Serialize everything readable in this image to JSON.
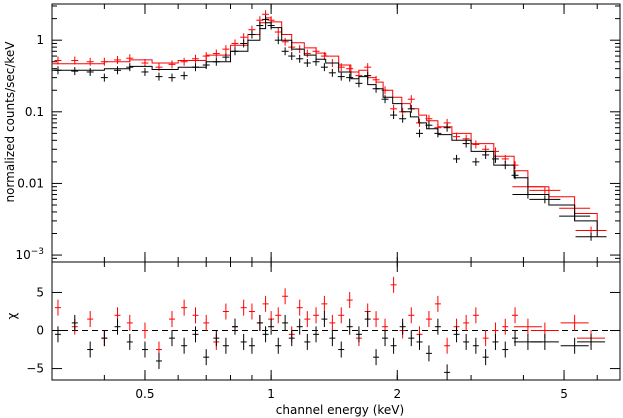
{
  "chart_data": [
    {
      "type": "line",
      "xscale": "log",
      "yscale": "log",
      "xlim": [
        0.3,
        6.8
      ],
      "ylim": [
        0.0008,
        3.2
      ],
      "ylabel": "normalized counts/sec/keV",
      "yticks": [
        {
          "value": 0.001,
          "base": "10",
          "exp": "−3"
        },
        {
          "value": 0.01,
          "label": "0.01"
        },
        {
          "value": 0.1,
          "label": "0.1"
        },
        {
          "value": 1,
          "label": "1"
        }
      ],
      "series": [
        {
          "color": "#ff0000",
          "style": "data",
          "x": [
            0.31,
            0.34,
            0.37,
            0.4,
            0.43,
            0.46,
            0.5,
            0.54,
            0.58,
            0.62,
            0.66,
            0.7,
            0.74,
            0.78,
            0.82,
            0.86,
            0.9,
            0.94,
            0.97,
            1.0,
            1.04,
            1.08,
            1.12,
            1.17,
            1.22,
            1.28,
            1.34,
            1.4,
            1.47,
            1.54,
            1.62,
            1.7,
            1.78,
            1.87,
            1.96,
            2.06,
            2.16,
            2.26,
            2.38,
            2.5,
            2.63,
            2.77,
            2.92,
            3.08,
            3.25,
            3.43,
            3.62,
            3.82,
            4.1,
            4.5,
            5.3,
            5.8
          ],
          "y": [
            0.52,
            0.52,
            0.5,
            0.5,
            0.53,
            0.56,
            0.48,
            0.42,
            0.46,
            0.5,
            0.55,
            0.6,
            0.65,
            0.75,
            0.9,
            1.1,
            1.4,
            1.9,
            2.3,
            1.9,
            1.3,
            0.95,
            0.8,
            0.75,
            0.65,
            0.7,
            0.6,
            0.48,
            0.42,
            0.4,
            0.32,
            0.42,
            0.28,
            0.2,
            0.11,
            0.1,
            0.15,
            0.07,
            0.08,
            0.06,
            0.07,
            0.045,
            0.042,
            0.035,
            0.03,
            0.028,
            0.022,
            0.018,
            0.009,
            0.008,
            0.0045,
            0.0022
          ]
        },
        {
          "color": "#ff0000",
          "style": "model",
          "x": [
            0.3,
            0.4,
            0.46,
            0.52,
            0.6,
            0.7,
            0.8,
            0.88,
            0.94,
            0.97,
            1.0,
            1.06,
            1.12,
            1.2,
            1.28,
            1.35,
            1.45,
            1.55,
            1.62,
            1.7,
            1.78,
            1.85,
            1.95,
            2.05,
            2.15,
            2.25,
            2.35,
            2.5,
            2.7,
            3.0,
            3.4,
            3.8,
            4.1,
            4.6,
            5.3,
            6.0
          ],
          "y": [
            0.47,
            0.5,
            0.53,
            0.48,
            0.52,
            0.62,
            0.85,
            1.2,
            1.75,
            2.05,
            1.8,
            1.2,
            0.92,
            0.78,
            0.66,
            0.6,
            0.45,
            0.36,
            0.38,
            0.3,
            0.26,
            0.2,
            0.16,
            0.13,
            0.11,
            0.09,
            0.075,
            0.062,
            0.05,
            0.036,
            0.024,
            0.015,
            0.009,
            0.0065,
            0.0038,
            0.0022
          ]
        },
        {
          "color": "#000000",
          "style": "data",
          "x": [
            0.31,
            0.34,
            0.37,
            0.4,
            0.43,
            0.46,
            0.5,
            0.54,
            0.58,
            0.62,
            0.66,
            0.7,
            0.74,
            0.78,
            0.82,
            0.86,
            0.9,
            0.94,
            0.97,
            1.0,
            1.04,
            1.08,
            1.12,
            1.17,
            1.22,
            1.28,
            1.34,
            1.4,
            1.47,
            1.54,
            1.62,
            1.7,
            1.78,
            1.87,
            1.96,
            2.06,
            2.16,
            2.26,
            2.38,
            2.5,
            2.63,
            2.77,
            2.92,
            3.08,
            3.25,
            3.43,
            3.62,
            3.82,
            4.1,
            4.5,
            5.3,
            5.8
          ],
          "y": [
            0.38,
            0.37,
            0.36,
            0.3,
            0.38,
            0.42,
            0.36,
            0.31,
            0.3,
            0.32,
            0.42,
            0.45,
            0.5,
            0.58,
            0.7,
            0.9,
            1.2,
            1.6,
            1.95,
            1.6,
            1.0,
            0.7,
            0.6,
            0.55,
            0.48,
            0.5,
            0.42,
            0.35,
            0.31,
            0.3,
            0.25,
            0.32,
            0.21,
            0.15,
            0.09,
            0.08,
            0.11,
            0.05,
            0.065,
            0.05,
            0.06,
            0.022,
            0.036,
            0.02,
            0.025,
            0.022,
            0.018,
            0.013,
            0.007,
            0.006,
            0.0035,
            0.0018
          ]
        },
        {
          "color": "#000000",
          "style": "model",
          "x": [
            0.3,
            0.4,
            0.46,
            0.52,
            0.6,
            0.7,
            0.8,
            0.88,
            0.94,
            0.97,
            1.0,
            1.06,
            1.12,
            1.2,
            1.28,
            1.35,
            1.45,
            1.55,
            1.62,
            1.7,
            1.78,
            1.85,
            1.95,
            2.05,
            2.15,
            2.25,
            2.35,
            2.5,
            2.7,
            3.0,
            3.4,
            3.8,
            4.1,
            4.6,
            5.3,
            6.0
          ],
          "y": [
            0.38,
            0.4,
            0.43,
            0.39,
            0.42,
            0.5,
            0.7,
            1.0,
            1.45,
            1.75,
            1.5,
            1.0,
            0.75,
            0.62,
            0.54,
            0.48,
            0.36,
            0.29,
            0.31,
            0.24,
            0.21,
            0.16,
            0.13,
            0.1,
            0.085,
            0.07,
            0.058,
            0.048,
            0.04,
            0.028,
            0.018,
            0.012,
            0.007,
            0.005,
            0.003,
            0.0018
          ]
        }
      ]
    },
    {
      "type": "scatter",
      "xscale": "log",
      "xlim": [
        0.3,
        6.8
      ],
      "ylim": [
        -6.5,
        9.0
      ],
      "ylabel": "χ",
      "xlabel": "channel energy (keV)",
      "xticks": [
        {
          "value": 0.5,
          "label": "0.5"
        },
        {
          "value": 1,
          "label": "1"
        },
        {
          "value": 2,
          "label": "2"
        },
        {
          "value": 5,
          "label": "5"
        }
      ],
      "yticks": [
        {
          "value": -5,
          "label": "−5"
        },
        {
          "value": 0,
          "label": "0"
        },
        {
          "value": 5,
          "label": "5"
        }
      ],
      "reference_line": 0,
      "series": [
        {
          "color": "#ff0000",
          "x": [
            0.31,
            0.34,
            0.37,
            0.4,
            0.43,
            0.46,
            0.5,
            0.54,
            0.58,
            0.62,
            0.66,
            0.7,
            0.74,
            0.78,
            0.82,
            0.86,
            0.9,
            0.94,
            0.97,
            1.0,
            1.04,
            1.08,
            1.12,
            1.17,
            1.22,
            1.28,
            1.34,
            1.4,
            1.47,
            1.54,
            1.62,
            1.7,
            1.78,
            1.87,
            1.96,
            2.06,
            2.16,
            2.26,
            2.38,
            2.5,
            2.63,
            2.77,
            2.92,
            3.08,
            3.25,
            3.43,
            3.62,
            3.82,
            4.1,
            4.5,
            5.3,
            5.8
          ],
          "y": [
            3.0,
            0.5,
            1.5,
            -1.0,
            2.0,
            1.0,
            0.0,
            -2.5,
            1.5,
            3.0,
            2.0,
            1.0,
            -1.5,
            2.5,
            0.5,
            3.0,
            2.5,
            1.0,
            3.5,
            1.5,
            2.0,
            4.5,
            -0.5,
            3.0,
            1.5,
            2.0,
            3.5,
            1.0,
            2.0,
            4.0,
            -1.0,
            2.5,
            1.5,
            0.5,
            6.0,
            0.0,
            2.0,
            -0.5,
            1.5,
            3.5,
            -2.0,
            0.5,
            1.0,
            2.0,
            -1.0,
            0.0,
            0.5,
            2.0,
            0.5,
            0.0,
            1.0,
            -1.0
          ]
        },
        {
          "color": "#000000",
          "x": [
            0.31,
            0.34,
            0.37,
            0.4,
            0.43,
            0.46,
            0.5,
            0.54,
            0.58,
            0.62,
            0.66,
            0.7,
            0.74,
            0.78,
            0.82,
            0.86,
            0.9,
            0.94,
            0.97,
            1.0,
            1.04,
            1.08,
            1.12,
            1.17,
            1.22,
            1.28,
            1.34,
            1.4,
            1.47,
            1.54,
            1.62,
            1.7,
            1.78,
            1.87,
            1.96,
            2.06,
            2.16,
            2.26,
            2.38,
            2.5,
            2.63,
            2.77,
            2.92,
            3.08,
            3.25,
            3.43,
            3.62,
            3.82,
            4.1,
            4.5,
            5.3,
            5.8
          ],
          "y": [
            -0.5,
            1.0,
            -2.5,
            -1.0,
            0.5,
            -1.5,
            -2.5,
            -4.0,
            -1.0,
            -2.0,
            -0.5,
            -3.5,
            -1.0,
            -2.0,
            0.5,
            -1.5,
            -2.0,
            1.0,
            -0.5,
            0.5,
            -2.0,
            1.0,
            -1.0,
            0.5,
            -1.5,
            -0.5,
            1.5,
            -1.0,
            -2.5,
            0.5,
            -0.5,
            1.5,
            -3.5,
            -1.0,
            -2.0,
            0.5,
            -1.0,
            -1.5,
            -3.0,
            0.5,
            -5.5,
            -0.5,
            -1.5,
            -2.0,
            -3.5,
            -1.5,
            -2.5,
            -1.0,
            -1.5,
            -1.5,
            -2.0,
            -1.5
          ]
        }
      ]
    }
  ]
}
